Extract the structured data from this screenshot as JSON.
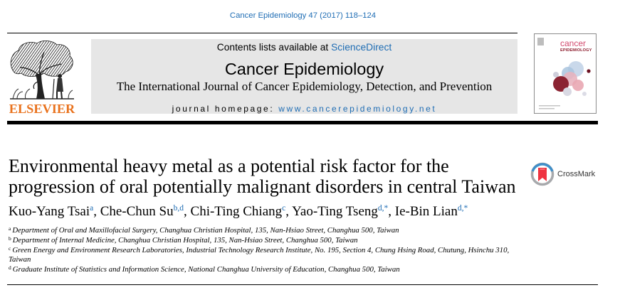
{
  "citation": "Cancer Epidemiology 47 (2017) 118–124",
  "header": {
    "publisher_logo_text": "ELSEVIER",
    "contents_prefix": "Contents lists available at",
    "contents_link": "ScienceDirect",
    "journal_title": "Cancer Epidemiology",
    "journal_subtitle": "The International Journal of Cancer Epidemiology, Detection, and Prevention",
    "homepage_prefix": "journal homepage:",
    "homepage_url": "www.cancerepidemiology.net"
  },
  "cover": {
    "title_line1": "cancer",
    "title_line2": "EPIDEMIOLOGY"
  },
  "article": {
    "title_line1": "Environmental heavy metal as a potential risk factor for the",
    "title_line2": "progression of oral potentially malignant disorders in central Taiwan",
    "crossmark_label": "CrossMark",
    "author_separator": ",",
    "authors": [
      {
        "name": "Kuo-Yang Tsai",
        "affiliation_marks": "a"
      },
      {
        "name": "Che-Chun Su",
        "affiliation_marks": "b,d"
      },
      {
        "name": "Chi-Ting Chiang",
        "affiliation_marks": "c"
      },
      {
        "name": "Yao-Ting Tseng",
        "affiliation_marks": "d,*"
      },
      {
        "name": "Ie-Bin Lian",
        "affiliation_marks": "d,*"
      }
    ],
    "affiliations": [
      {
        "label": "a",
        "text": "Department of Oral and Maxillofacial Surgery, Changhua Christian Hospital, 135, Nan-Hsiao Street, Changhua 500, Taiwan"
      },
      {
        "label": "b",
        "text": "Department of Internal Medicine, Changhua Christian Hospital, 135, Nan-Hsiao Street, Changhua 500, Taiwan"
      },
      {
        "label": "c",
        "text": "Green Energy and Environment Research Laboratories, Industrial Technology Research Institute, No. 195, Section 4, Chung Hsing Road, Chutung, Hsinchu 310, Taiwan"
      },
      {
        "label": "d",
        "text": "Graduate Institute of Statistics and Information Science, National Changhua University of Education, Changhua 500, Taiwan"
      }
    ]
  },
  "icons": {
    "publisher_logo": "elsevier-tree-logo",
    "journal_cover": "journal-cover-thumbnail",
    "crossmark": "crossmark-icon"
  },
  "colors": {
    "link": "#1f6db4",
    "publisher_orange": "#e9721d",
    "header_background": "#e6e6e6",
    "rule": "#000000"
  }
}
